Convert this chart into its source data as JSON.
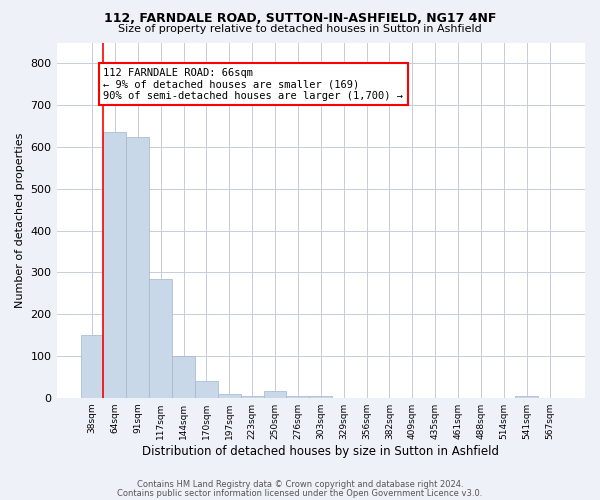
{
  "title_line1": "112, FARNDALE ROAD, SUTTON-IN-ASHFIELD, NG17 4NF",
  "title_line2": "Size of property relative to detached houses in Sutton in Ashfield",
  "xlabel": "Distribution of detached houses by size in Sutton in Ashfield",
  "ylabel": "Number of detached properties",
  "bar_color": "#c8d8e8",
  "bar_edgecolor": "#a0b8d0",
  "categories": [
    "38sqm",
    "64sqm",
    "91sqm",
    "117sqm",
    "144sqm",
    "170sqm",
    "197sqm",
    "223sqm",
    "250sqm",
    "276sqm",
    "303sqm",
    "329sqm",
    "356sqm",
    "382sqm",
    "409sqm",
    "435sqm",
    "461sqm",
    "488sqm",
    "514sqm",
    "541sqm",
    "567sqm"
  ],
  "values": [
    150,
    635,
    625,
    285,
    100,
    40,
    10,
    5,
    15,
    3,
    3,
    0,
    0,
    0,
    0,
    0,
    0,
    0,
    0,
    3,
    0
  ],
  "ylim": [
    0,
    850
  ],
  "yticks": [
    0,
    100,
    200,
    300,
    400,
    500,
    600,
    700,
    800
  ],
  "red_line_index": 1,
  "annotation_text": "112 FARNDALE ROAD: 66sqm\n← 9% of detached houses are smaller (169)\n90% of semi-detached houses are larger (1,700) →",
  "annotation_box_color": "white",
  "annotation_border_color": "red",
  "footer_line1": "Contains HM Land Registry data © Crown copyright and database right 2024.",
  "footer_line2": "Contains public sector information licensed under the Open Government Licence v3.0.",
  "background_color": "#eef2f8",
  "plot_background": "white",
  "grid_color": "#c8ccd8"
}
